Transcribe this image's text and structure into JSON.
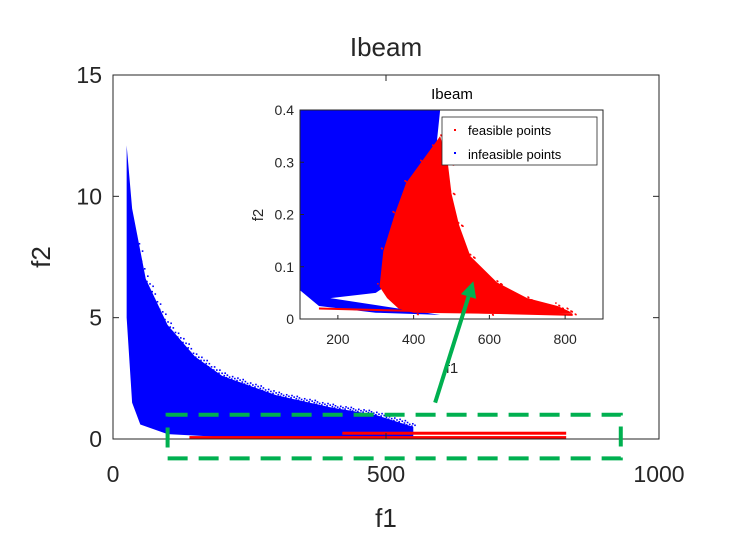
{
  "colors": {
    "feasible": "#ff0000",
    "infeasible": "#0000ff",
    "highlight": "#00b050",
    "axis": "#262626"
  },
  "chart_data": [
    {
      "type": "scatter",
      "title": "Ibeam",
      "xlabel": "f1",
      "ylabel": "f2",
      "xlim": [
        0,
        1000
      ],
      "ylim": [
        0,
        15
      ],
      "xticks": [
        0,
        500,
        1000
      ],
      "yticks": [
        0,
        5,
        10,
        15
      ],
      "series": [
        {
          "name": "infeasible points",
          "color": "#0000ff",
          "upper_envelope": [
            [
              25,
              12.1
            ],
            [
              35,
              9.5
            ],
            [
              60,
              6.6
            ],
            [
              100,
              4.7
            ],
            [
              150,
              3.4
            ],
            [
              200,
              2.6
            ],
            [
              300,
              1.8
            ],
            [
              400,
              1.3
            ],
            [
              480,
              1.0
            ],
            [
              550,
              0.5
            ]
          ],
          "lower_envelope": [
            [
              25,
              5.0
            ],
            [
              35,
              1.5
            ],
            [
              50,
              0.6
            ],
            [
              100,
              0.2
            ],
            [
              200,
              0.08
            ],
            [
              400,
              0.05
            ],
            [
              550,
              0.05
            ]
          ]
        },
        {
          "name": "feasible points",
          "color": "#ff0000",
          "x_range": [
            140,
            830
          ],
          "y_range": [
            0.0,
            0.4
          ]
        }
      ],
      "highlight_box": {
        "x": [
          100,
          930
        ],
        "y": [
          -0.8,
          1.0
        ]
      },
      "arrow": {
        "from": [
          590,
          1.5
        ],
        "to": [
          660,
          6.5
        ]
      }
    },
    {
      "type": "scatter",
      "title": "Ibeam",
      "xlabel": "f1",
      "ylabel": "f2",
      "xlim": [
        100,
        900
      ],
      "ylim": [
        0,
        0.4
      ],
      "xticks": [
        200,
        400,
        600,
        800
      ],
      "yticks": [
        0,
        0.1,
        0.2,
        0.3,
        0.4
      ],
      "legend": {
        "position": "top-right",
        "entries": [
          "feasible points",
          "infeasible points"
        ]
      },
      "series": [
        {
          "name": "infeasible points",
          "color": "#0000ff",
          "region_upper": [
            [
              100,
              0.4
            ],
            [
              470,
              0.4
            ],
            [
              460,
              0.33
            ],
            [
              440,
              0.2
            ],
            [
              400,
              0.1
            ],
            [
              300,
              0.05
            ],
            [
              180,
              0.04
            ]
          ],
          "region_lower": [
            [
              100,
              0.055
            ],
            [
              150,
              0.025
            ],
            [
              300,
              0.012
            ],
            [
              470,
              0.008
            ]
          ]
        },
        {
          "name": "feasible points",
          "color": "#ff0000",
          "outline": [
            [
              310,
              0.062
            ],
            [
              320,
              0.13
            ],
            [
              350,
              0.2
            ],
            [
              380,
              0.26
            ],
            [
              420,
              0.3
            ],
            [
              450,
              0.33
            ],
            [
              470,
              0.35
            ],
            [
              490,
              0.3
            ],
            [
              500,
              0.24
            ],
            [
              520,
              0.18
            ],
            [
              550,
              0.12
            ],
            [
              620,
              0.07
            ],
            [
              700,
              0.04
            ],
            [
              780,
              0.025
            ],
            [
              810,
              0.015
            ],
            [
              820,
              0.01
            ],
            [
              600,
              0.01
            ],
            [
              400,
              0.012
            ],
            [
              360,
              0.02
            ],
            [
              330,
              0.04
            ]
          ],
          "tail": [
            [
              150,
              0.02
            ],
            [
              820,
              0.008
            ]
          ]
        }
      ]
    }
  ]
}
